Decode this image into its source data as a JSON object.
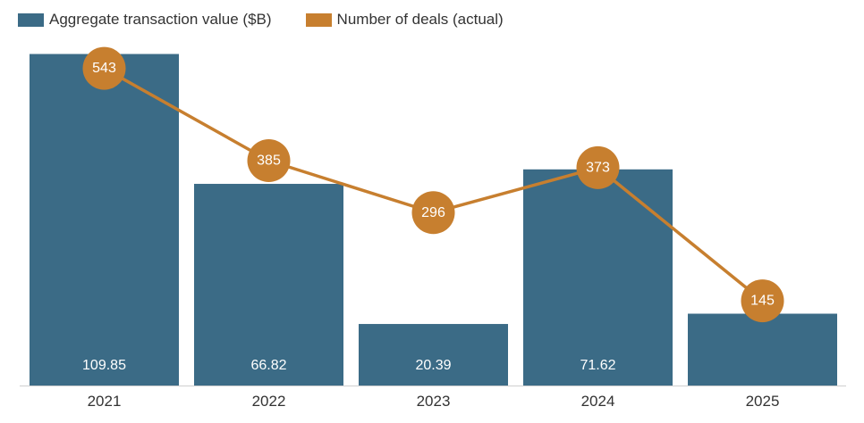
{
  "chart_data": {
    "type": "bar",
    "categories": [
      "2021",
      "2022",
      "2023",
      "2024",
      "2025"
    ],
    "series": [
      {
        "name": "Aggregate transaction value ($B)",
        "type": "bar",
        "values": [
          109.85,
          66.82,
          20.39,
          71.62,
          23.8
        ],
        "labels": [
          "109.85",
          "66.82",
          "20.39",
          "71.62",
          null
        ],
        "color": "#3b6b86"
      },
      {
        "name": "Number of deals (actual)",
        "type": "line",
        "values": [
          543,
          385,
          296,
          373,
          145
        ],
        "labels": [
          "543",
          "385",
          "296",
          "373",
          "145"
        ],
        "color": "#c77f2f"
      }
    ],
    "ylim_bar": [
      0,
      110
    ],
    "ylim_line": [
      0,
      660
    ],
    "legend_position": "top-left",
    "grid": false
  }
}
